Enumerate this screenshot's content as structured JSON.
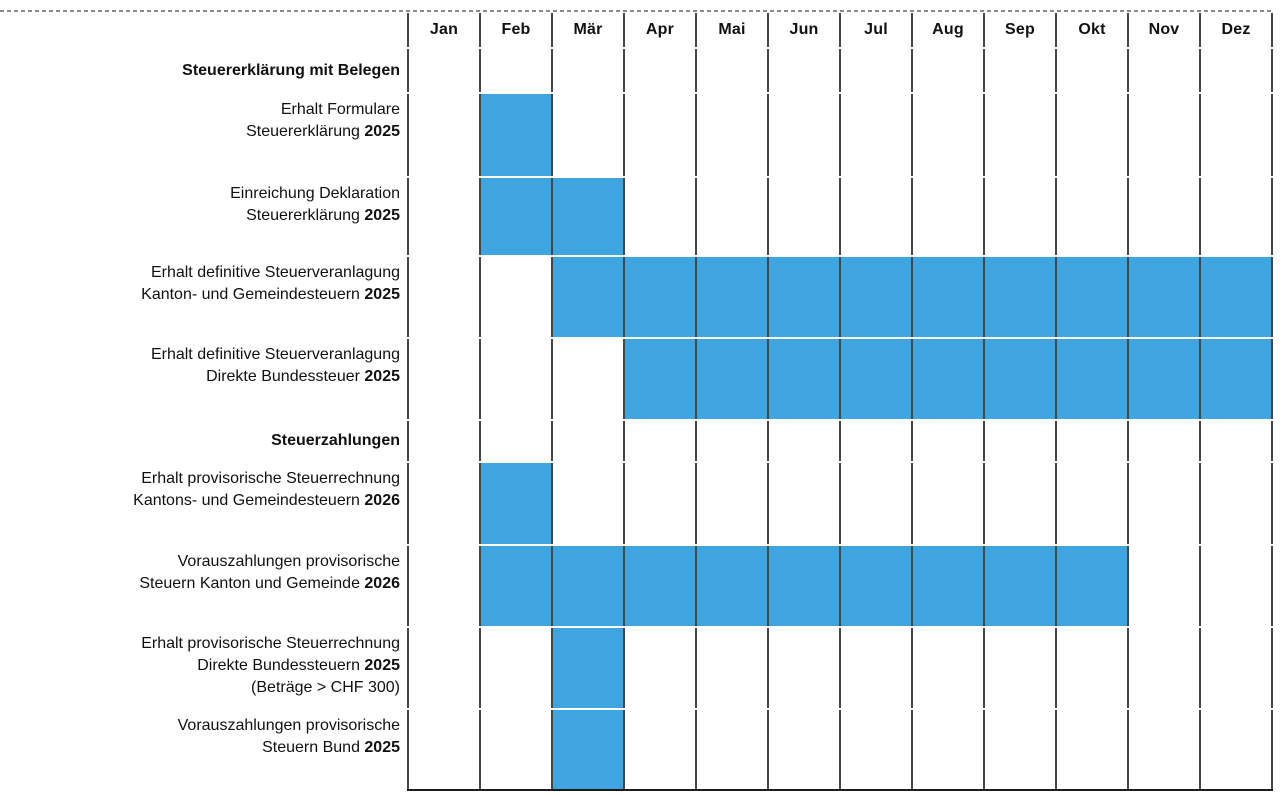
{
  "chart_data": {
    "type": "bar",
    "variant": "gantt-monthly-timeline",
    "title": "",
    "xlabel": "",
    "ylabel": "",
    "grid": true,
    "legend": false,
    "x_axis_months": [
      "Jan",
      "Feb",
      "Mär",
      "Apr",
      "Mai",
      "Jun",
      "Jul",
      "Aug",
      "Sep",
      "Okt",
      "Nov",
      "Dez"
    ],
    "colors": {
      "bar_fill": "#3FA5E0",
      "grid_line": "#454545",
      "text": "#111111",
      "top_dashed_line": "#8C8C8C",
      "bottom_line": "#1A1A1A",
      "background": "#FFFFFF"
    },
    "rows": [
      {
        "kind": "section",
        "lines": [
          [
            {
              "t": "Steuererklärung mit Belegen",
              "b": true
            }
          ]
        ],
        "bar": null
      },
      {
        "kind": "task",
        "lines": [
          [
            {
              "t": "Erhalt Formulare",
              "b": false
            }
          ],
          [
            {
              "t": "Steuererklärung ",
              "b": false
            },
            {
              "t": "2025",
              "b": true
            }
          ]
        ],
        "bar": {
          "start": "Feb",
          "end": "Feb"
        }
      },
      {
        "kind": "task",
        "lines": [
          [
            {
              "t": "Einreichung Deklaration",
              "b": false
            }
          ],
          [
            {
              "t": "Steuererklärung ",
              "b": false
            },
            {
              "t": "2025",
              "b": true
            }
          ]
        ],
        "bar": {
          "start": "Feb",
          "end": "Mär"
        }
      },
      {
        "kind": "task",
        "lines": [
          [
            {
              "t": "Erhalt definitive Steuerveranlagung",
              "b": false
            }
          ],
          [
            {
              "t": "Kanton- und Gemeindesteuern ",
              "b": false
            },
            {
              "t": "2025",
              "b": true
            }
          ]
        ],
        "bar": {
          "start": "Mär",
          "end": "Dez"
        }
      },
      {
        "kind": "task",
        "lines": [
          [
            {
              "t": "Erhalt definitive Steuerveranlagung",
              "b": false
            }
          ],
          [
            {
              "t": "Direkte Bundessteuer ",
              "b": false
            },
            {
              "t": "2025",
              "b": true
            }
          ]
        ],
        "bar": {
          "start": "Apr",
          "end": "Dez"
        }
      },
      {
        "kind": "section",
        "lines": [
          [
            {
              "t": "Steuerzahlungen",
              "b": true
            }
          ]
        ],
        "bar": null
      },
      {
        "kind": "task",
        "lines": [
          [
            {
              "t": "Erhalt provisorische Steuerrechnung",
              "b": false
            }
          ],
          [
            {
              "t": "Kantons- und Gemeindesteuern ",
              "b": false
            },
            {
              "t": "2026",
              "b": true
            }
          ]
        ],
        "bar": {
          "start": "Feb",
          "end": "Feb"
        }
      },
      {
        "kind": "task",
        "lines": [
          [
            {
              "t": "Vorauszahlungen provisorische",
              "b": false
            }
          ],
          [
            {
              "t": "Steuern Kanton und Gemeinde ",
              "b": false
            },
            {
              "t": "2026",
              "b": true
            }
          ]
        ],
        "bar": {
          "start": "Feb",
          "end": "Okt"
        }
      },
      {
        "kind": "task",
        "lines": [
          [
            {
              "t": "Erhalt provisorische Steuerrechnung",
              "b": false
            }
          ],
          [
            {
              "t": "Direkte Bundessteuern ",
              "b": false
            },
            {
              "t": "2025",
              "b": true
            }
          ],
          [
            {
              "t": "(Beträge > CHF 300)",
              "b": false
            }
          ]
        ],
        "bar": {
          "start": "Mär",
          "end": "Mär"
        }
      },
      {
        "kind": "task",
        "lines": [
          [
            {
              "t": "Vorauszahlungen provisorische",
              "b": false
            }
          ],
          [
            {
              "t": "Steuern Bund ",
              "b": false
            },
            {
              "t": "2025",
              "b": true
            }
          ]
        ],
        "bar": {
          "start": "Mär",
          "end": "Mär"
        }
      }
    ]
  }
}
